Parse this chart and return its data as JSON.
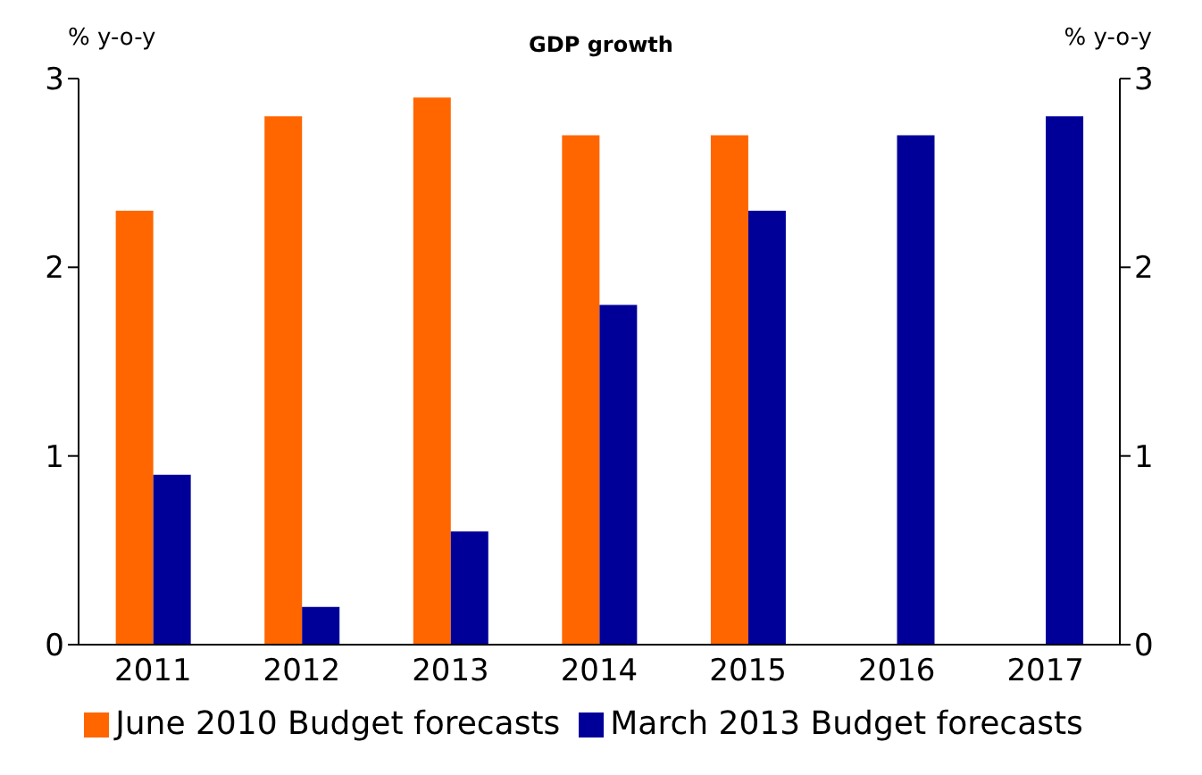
{
  "chart_data": {
    "type": "bar",
    "title": "GDP growth",
    "ylabel": "% y-o-y",
    "y2label": "% y-o-y",
    "categories": [
      "2011",
      "2012",
      "2013",
      "2014",
      "2015",
      "2016",
      "2017"
    ],
    "series": [
      {
        "name": "June 2010 Budget forecasts",
        "color": "#ff6600",
        "values": [
          2.3,
          2.8,
          2.9,
          2.7,
          2.7,
          null,
          null
        ]
      },
      {
        "name": "March 2013 Budget forecasts",
        "color": "#000099",
        "values": [
          0.9,
          0.2,
          0.6,
          1.8,
          2.3,
          2.7,
          2.8
        ]
      }
    ],
    "ylim": [
      0,
      3
    ],
    "yticks": [
      0,
      1,
      2,
      3
    ],
    "y2lim": [
      0,
      3
    ],
    "y2ticks": [
      0,
      1,
      2,
      3
    ],
    "grid": false,
    "legend": "bottom"
  }
}
